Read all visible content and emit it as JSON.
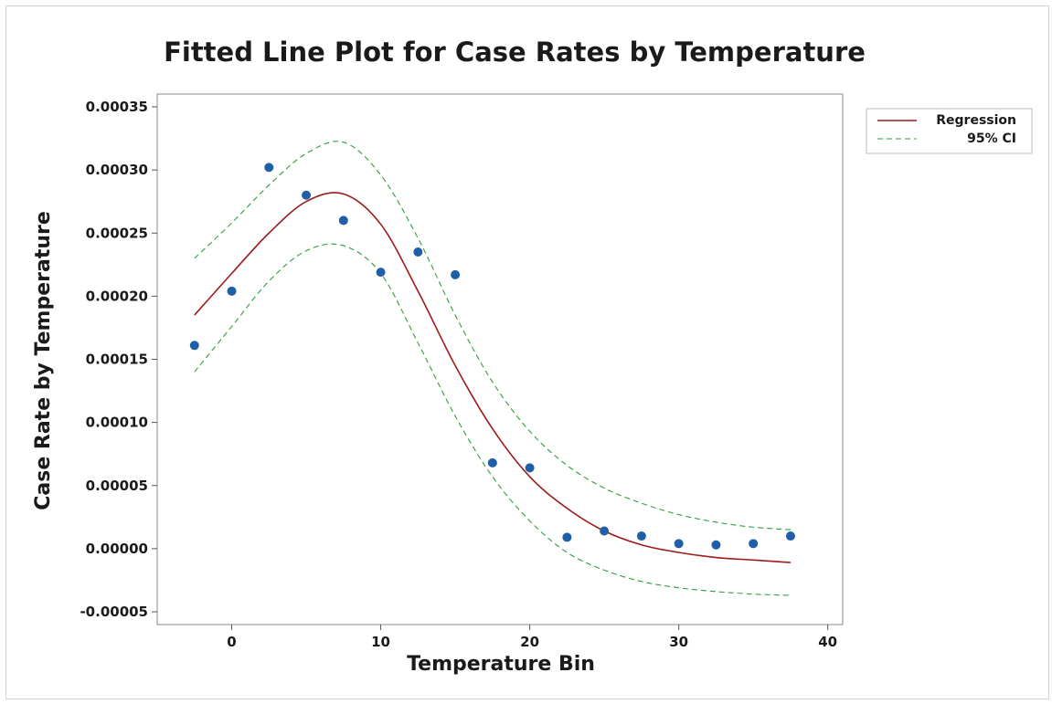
{
  "chart_data": {
    "type": "scatter",
    "title": "Fitted Line Plot for Case Rates by Temperature",
    "xlabel": "Temperature Bin",
    "ylabel": "Case Rate by Temperature",
    "xlim": [
      -5,
      41
    ],
    "ylim": [
      -5e-05,
      0.00035
    ],
    "xticks": [
      0,
      10,
      20,
      30,
      40
    ],
    "xtick_labels": [
      "0",
      "10",
      "20",
      "30",
      "40"
    ],
    "yticks": [
      -5e-05,
      0,
      5e-05,
      0.0001,
      0.00015,
      0.0002,
      0.00025,
      0.0003,
      0.00035
    ],
    "ytick_labels": [
      "-0.00005",
      "0.00000",
      "0.00005",
      "0.00010",
      "0.00015",
      "0.00020",
      "0.00025",
      "0.00030",
      "0.00035"
    ],
    "grid": false,
    "legend_position": "top-right-outside",
    "points": {
      "color": "#1f5fa8",
      "x": [
        -2.5,
        0,
        2.5,
        5,
        7.5,
        10,
        12.5,
        15,
        17.5,
        20,
        22.5,
        25,
        27.5,
        30,
        32.5,
        35,
        37.5
      ],
      "y": [
        0.000161,
        0.000204,
        0.000302,
        0.00028,
        0.00026,
        0.000219,
        0.000235,
        0.000217,
        6.8e-05,
        6.4e-05,
        9e-06,
        1.4e-05,
        1e-05,
        4e-06,
        3e-06,
        4e-06,
        1e-05
      ]
    },
    "series": [
      {
        "name": "Regression",
        "color": "#9b1c1c",
        "dash": "solid",
        "x": [
          -2.5,
          0,
          2.5,
          5,
          7.5,
          10,
          12.5,
          15,
          17.5,
          20,
          22.5,
          25,
          27.5,
          30,
          32.5,
          35,
          37.5
        ],
        "y": [
          0.000185,
          0.000218,
          0.00025,
          0.000275,
          0.000281,
          0.000257,
          0.000204,
          0.000145,
          9.5e-05,
          5.7e-05,
          3.2e-05,
          1.4e-05,
          3e-06,
          -3e-06,
          -7e-06,
          -9e-06,
          -1.1e-05
        ]
      },
      {
        "name": "95% CI",
        "color": "#2e9e3f",
        "dash": "dashed",
        "x": [
          -2.5,
          0,
          2.5,
          5,
          7.5,
          10,
          12.5,
          15,
          17.5,
          20,
          22.5,
          25,
          27.5,
          30,
          32.5,
          35,
          37.5
        ],
        "y": [
          0.00023,
          0.000258,
          0.000288,
          0.000313,
          0.000322,
          0.000296,
          0.000246,
          0.000185,
          0.000132,
          9.3e-05,
          6.6e-05,
          4.8e-05,
          3.6e-05,
          2.7e-05,
          2.1e-05,
          1.7e-05,
          1.5e-05
        ]
      },
      {
        "name": "",
        "color": "#2e9e3f",
        "dash": "dashed",
        "x": [
          -2.5,
          0,
          2.5,
          5,
          7.5,
          10,
          12.5,
          15,
          17.5,
          20,
          22.5,
          25,
          27.5,
          30,
          32.5,
          35,
          37.5
        ],
        "y": [
          0.00014,
          0.000176,
          0.000212,
          0.000236,
          0.00024,
          0.000218,
          0.000163,
          0.000105,
          5.7e-05,
          2.2e-05,
          -3e-06,
          -1.7e-05,
          -2.6e-05,
          -3.1e-05,
          -3.4e-05,
          -3.6e-05,
          -3.7e-05
        ]
      }
    ],
    "legend": [
      {
        "label": "Regression",
        "color": "#9b1c1c",
        "dash": "solid"
      },
      {
        "label": "95% CI",
        "color": "#2e9e3f",
        "dash": "dashed"
      }
    ]
  }
}
